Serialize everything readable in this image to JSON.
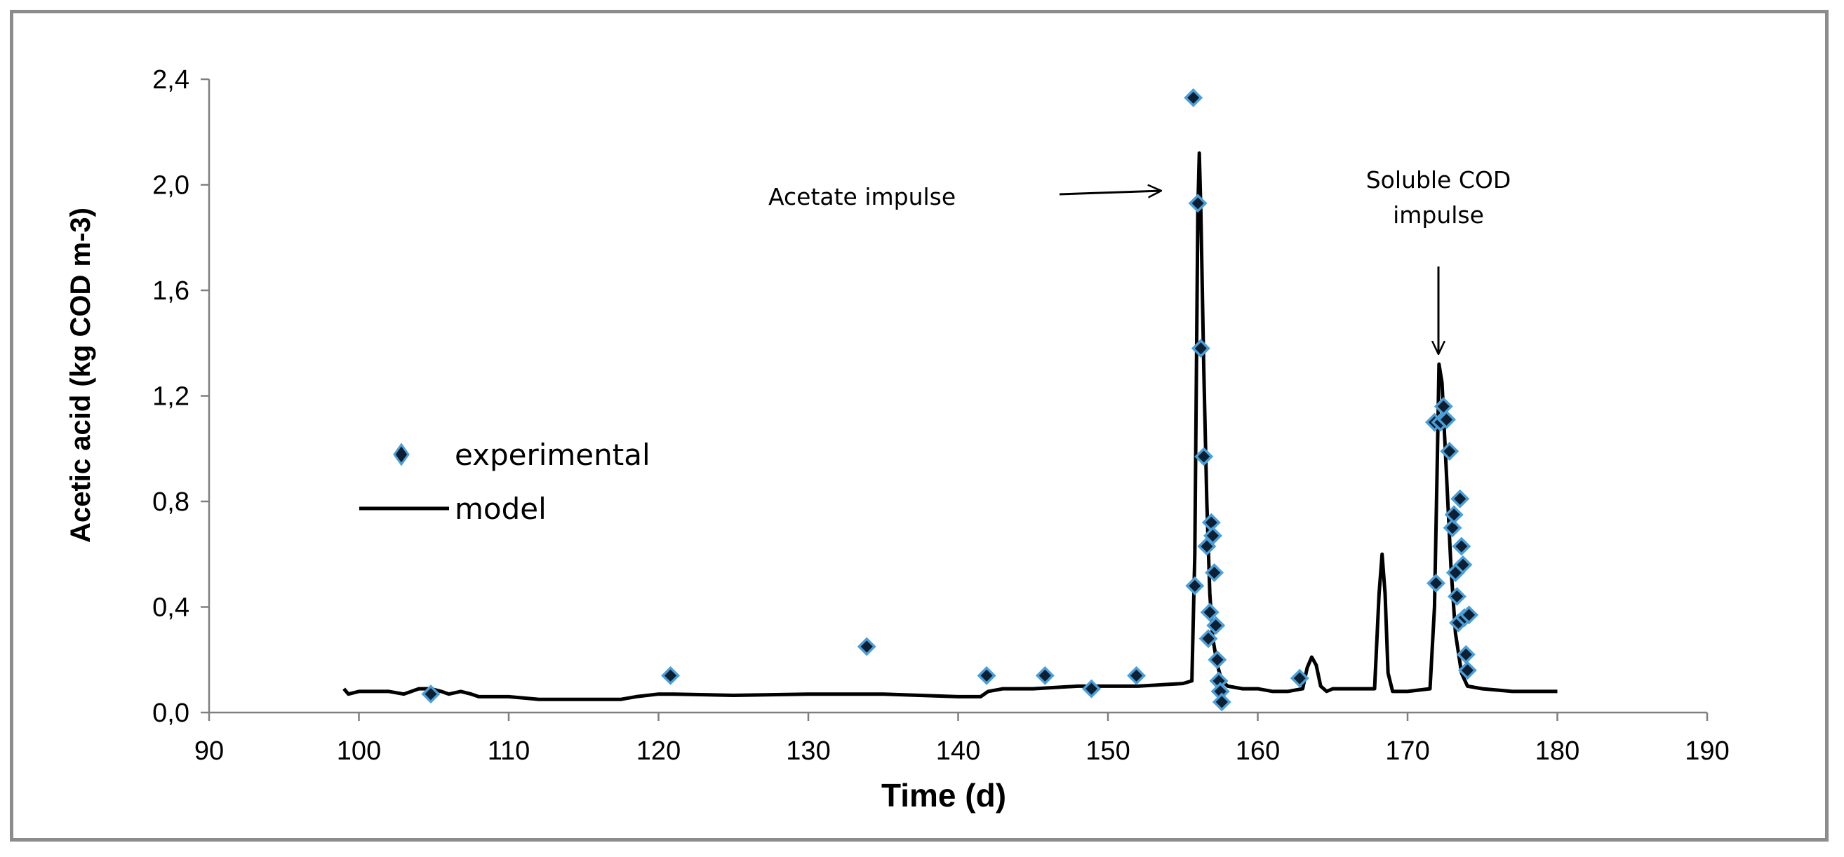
{
  "chart_data": {
    "type": "scatter",
    "title": "",
    "xlabel": "Time (d)",
    "ylabel": "Acetic acid (kg COD m-3)",
    "xlim": [
      90,
      190
    ],
    "ylim": [
      0,
      2.4
    ],
    "x_ticks": [
      90,
      100,
      110,
      120,
      130,
      140,
      150,
      160,
      170,
      180,
      190
    ],
    "x_tick_labels": [
      "90",
      "100",
      "110",
      "120",
      "130",
      "140",
      "150",
      "160",
      "170",
      "180",
      "190"
    ],
    "y_ticks": [
      0,
      0.4,
      0.8,
      1.2,
      1.6,
      2.0,
      2.4
    ],
    "y_tick_labels": [
      "0,0",
      "0,4",
      "0,8",
      "1,2",
      "1,6",
      "2,0",
      "2,4"
    ],
    "grid": false,
    "legend_position": "middle-left",
    "series": [
      {
        "name": "experimental",
        "kind": "scatter",
        "marker": "diamond",
        "marker_fill": "#0d1f33",
        "marker_edge": "#4a9fd8",
        "x": [
          104.8,
          120.8,
          133.9,
          141.9,
          145.8,
          148.9,
          151.9,
          155.7,
          155.8,
          156.0,
          156.2,
          156.4,
          156.6,
          156.7,
          156.8,
          156.9,
          157.0,
          157.1,
          157.2,
          157.3,
          157.4,
          157.5,
          157.6,
          162.8,
          171.8,
          171.9,
          172.2,
          172.4,
          172.6,
          172.8,
          173.0,
          173.1,
          173.2,
          173.3,
          173.4,
          173.5,
          173.6,
          173.7,
          173.8,
          173.9,
          174.0,
          174.1
        ],
        "y": [
          0.07,
          0.14,
          0.25,
          0.14,
          0.14,
          0.09,
          0.14,
          2.33,
          0.48,
          1.93,
          1.38,
          0.97,
          0.63,
          0.28,
          0.38,
          0.72,
          0.67,
          0.53,
          0.33,
          0.2,
          0.12,
          0.08,
          0.04,
          0.13,
          1.1,
          0.49,
          1.1,
          1.16,
          1.11,
          0.99,
          0.7,
          0.75,
          0.53,
          0.44,
          0.34,
          0.81,
          0.63,
          0.56,
          0.36,
          0.22,
          0.16,
          0.37
        ]
      },
      {
        "name": "model",
        "kind": "line",
        "color": "#000000",
        "x": [
          99,
          99.3,
          100,
          102,
          103,
          104,
          104.8,
          105.5,
          106,
          106.8,
          107.5,
          108,
          110,
          112,
          115,
          117.5,
          118.5,
          120,
          121,
          125,
          130,
          135,
          140,
          141.5,
          142,
          143,
          145,
          148,
          150,
          152,
          155,
          155.6,
          155.8,
          156.0,
          156.1,
          156.2,
          156.4,
          156.6,
          156.8,
          157.0,
          157.3,
          157.6,
          158,
          159,
          160,
          161,
          162,
          163,
          163.3,
          163.6,
          163.9,
          164.2,
          164.6,
          165,
          167,
          167.8,
          168.1,
          168.3,
          168.5,
          168.7,
          169,
          170,
          171.5,
          171.8,
          172.0,
          172.1,
          172.3,
          172.6,
          172.9,
          173.2,
          173.6,
          174,
          175,
          177,
          180
        ],
        "y": [
          0.09,
          0.07,
          0.08,
          0.08,
          0.07,
          0.09,
          0.09,
          0.08,
          0.07,
          0.08,
          0.07,
          0.06,
          0.06,
          0.05,
          0.05,
          0.05,
          0.06,
          0.07,
          0.07,
          0.065,
          0.07,
          0.07,
          0.06,
          0.06,
          0.08,
          0.09,
          0.09,
          0.1,
          0.1,
          0.1,
          0.11,
          0.12,
          0.6,
          1.9,
          2.12,
          1.9,
          1.3,
          0.8,
          0.45,
          0.28,
          0.18,
          0.12,
          0.1,
          0.09,
          0.09,
          0.08,
          0.08,
          0.09,
          0.17,
          0.21,
          0.18,
          0.1,
          0.08,
          0.09,
          0.09,
          0.09,
          0.45,
          0.6,
          0.45,
          0.15,
          0.08,
          0.08,
          0.09,
          0.4,
          1.0,
          1.32,
          1.25,
          0.9,
          0.55,
          0.3,
          0.15,
          0.1,
          0.09,
          0.08,
          0.08
        ]
      }
    ],
    "annotations": [
      {
        "name": "acetate-impulse",
        "lines": [
          "Acetate impulse"
        ],
        "points_to_x": 155.5,
        "points_to_y": 2.13
      },
      {
        "name": "soluble-cod-impulse",
        "lines": [
          "Soluble COD",
          "impulse"
        ],
        "points_to_x": 172.0,
        "points_to_y": 1.45
      }
    ]
  }
}
